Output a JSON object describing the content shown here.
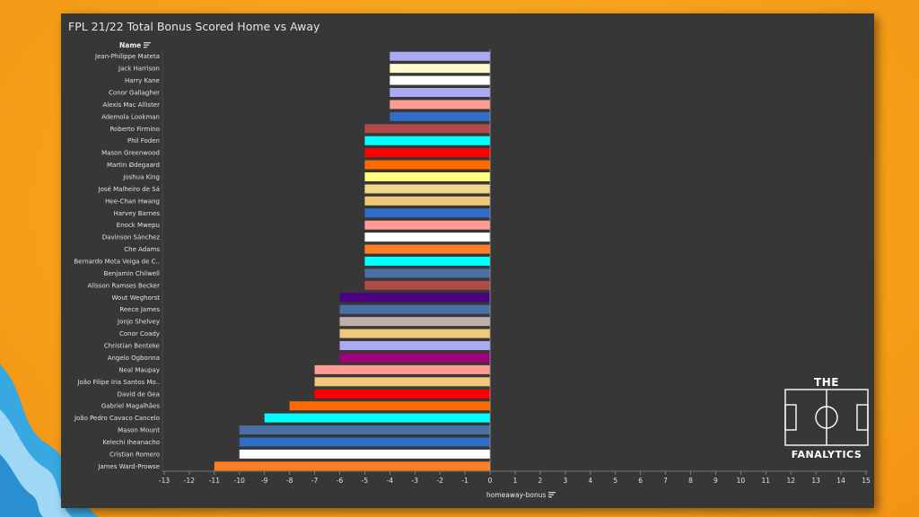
{
  "chart_data": {
    "type": "bar",
    "orientation": "horizontal",
    "title": "FPL 21/22 Total Bonus Scored Home vs Away",
    "row_header": "Name",
    "xlabel": "homeaway-bonus",
    "xlim": [
      -13,
      15
    ],
    "x_ticks": [
      "-13",
      "-12",
      "-11",
      "-10",
      "-9",
      "-8",
      "-7",
      "-6",
      "-5",
      "-4",
      "-3",
      "-2",
      "-1",
      "0",
      "1",
      "2",
      "3",
      "4",
      "5",
      "6",
      "7",
      "8",
      "9",
      "10",
      "11",
      "12",
      "13",
      "14",
      "15"
    ],
    "grid": false,
    "categories": [
      "Jean-Philippe Mateta",
      "Jack Harrison",
      "Harry Kane",
      "Conor Gallagher",
      "Alexis Mac Allister",
      "Ademola Lookman",
      "Roberto Firmino",
      "Phil Foden",
      "Mason Greenwood",
      "Martin Ødegaard",
      "Joshua King",
      "José Malheiro de Sá",
      "Hee-Chan Hwang",
      "Harvey Barnes",
      "Enock Mwepu",
      "Davinson Sánchez",
      "Che Adams",
      "Bernardo Mota Veiga de C..",
      "Benjamin Chilwell",
      "Alisson Ramses Becker",
      "Wout Weghorst",
      "Reece James",
      "Jonjo Shelvey",
      "Conor Coady",
      "Christian Benteke",
      "Angelo Ogbonna",
      "Neal Maupay",
      "João Filipe Iria Santos Mo..",
      "David de Gea",
      "Gabriel Magalhães",
      "João Pedro Cavaco Cancelo",
      "Mason Mount",
      "Kelechi Iheanacho",
      "Cristian Romero",
      "James Ward-Prowse"
    ],
    "values": [
      -4,
      -4,
      -4,
      -4,
      -4,
      -4,
      -5,
      -5,
      -5,
      -5,
      -5,
      -5,
      -5,
      -5,
      -5,
      -5,
      -5,
      -5,
      -5,
      -5,
      -6,
      -6,
      -6,
      -6,
      -6,
      -6,
      -7,
      -7,
      -7,
      -8,
      -9,
      -10,
      -10,
      -10,
      -11
    ],
    "colors": [
      "#aaaaf5",
      "#fffacd",
      "#ffffff",
      "#aaaaf5",
      "#ff9b93",
      "#2e6ec6",
      "#b04a4a",
      "#00ffff",
      "#ff0000",
      "#ff6a00",
      "#ffff80",
      "#f0d888",
      "#f0c878",
      "#2e6ec6",
      "#ff9b93",
      "#ffffff",
      "#ff7f27",
      "#00ffff",
      "#4a6fa5",
      "#b04a4a",
      "#4b0082",
      "#4a6fa5",
      "#c0b0a8",
      "#f0c878",
      "#aaaaf5",
      "#a0007c",
      "#ff9b93",
      "#f0c878",
      "#ff0000",
      "#ff6a00",
      "#00ffff",
      "#4a6fa5",
      "#2e6ec6",
      "#ffffff",
      "#ff7f27"
    ]
  },
  "logo": {
    "top_text": "THE",
    "bottom_text": "FANALYTICS"
  }
}
